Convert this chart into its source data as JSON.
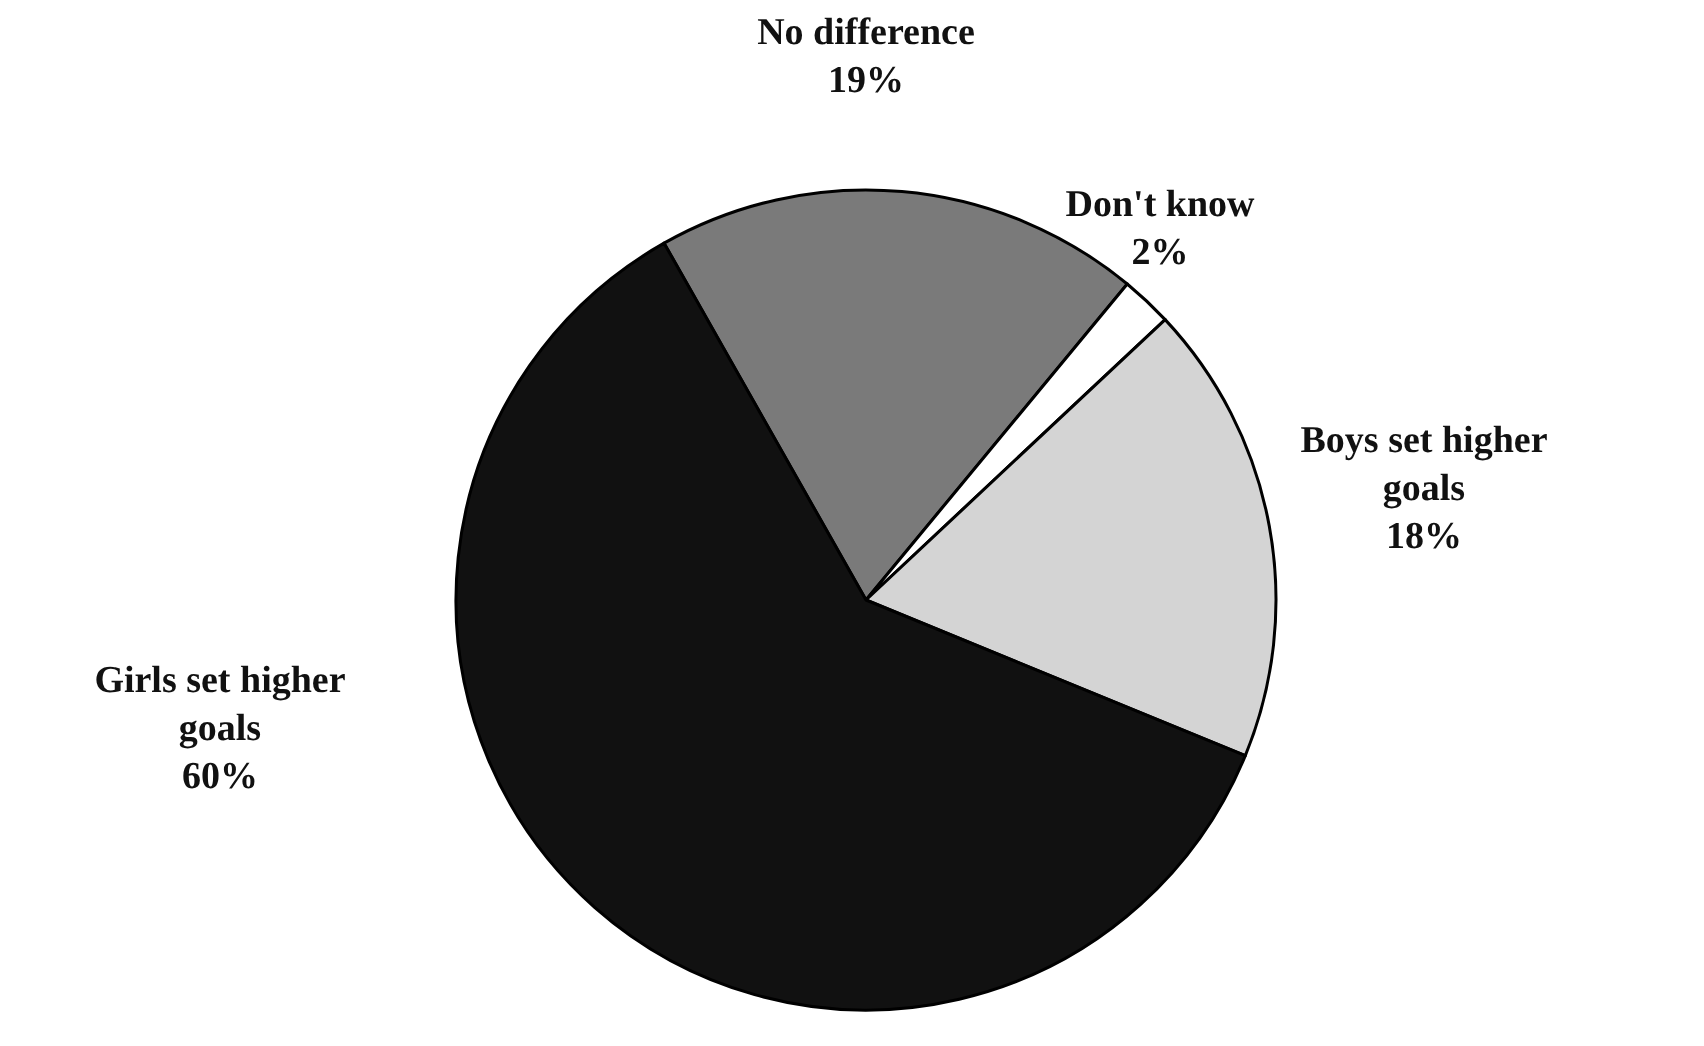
{
  "chart_data": {
    "type": "pie",
    "categories": [
      "No difference",
      "Don't know",
      "Boys set higher goals",
      "Girls set higher goals"
    ],
    "values": [
      19,
      2,
      18,
      60
    ],
    "colors": [
      "#7a7a7a",
      "#ffffff",
      "#d4d4d4",
      "#111111"
    ],
    "value_labels": [
      "19%",
      "2%",
      "18%",
      "60%"
    ]
  }
}
